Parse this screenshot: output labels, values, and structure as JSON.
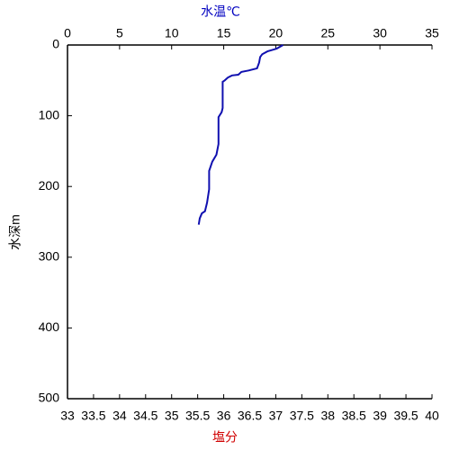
{
  "chart_data": {
    "type": "line",
    "x_label": "水温℃",
    "y_label": "水深m",
    "x2_label": "塩分",
    "x_label_color": "#0000c0",
    "x2_label_color": "#d00000",
    "xlim": [
      0,
      35
    ],
    "xticks": [
      0,
      5,
      10,
      15,
      20,
      25,
      30,
      35
    ],
    "ylim": [
      0,
      500
    ],
    "yticks": [
      0,
      100,
      200,
      300,
      400,
      500
    ],
    "y_inverted": true,
    "x2lim": [
      33,
      40
    ],
    "x2ticks": [
      33,
      33.5,
      34,
      34.5,
      35,
      35.5,
      36,
      36.5,
      37,
      37.5,
      38,
      38.5,
      39,
      39.5,
      40
    ],
    "series": [
      {
        "color": "#1010b0",
        "x": [
          20.7,
          20.1,
          19.9,
          19.2,
          18.7,
          18.5,
          18.4,
          18.2,
          17.4,
          16.7,
          16.4,
          15.8,
          15.4,
          15.1,
          14.9,
          14.9,
          14.8,
          14.5,
          14.5,
          14.3,
          13.9,
          13.6,
          13.6,
          13.4,
          13.2,
          12.9,
          12.7,
          12.6
        ],
        "y": [
          0,
          5,
          6,
          9,
          13,
          17,
          25,
          33,
          36,
          38,
          42,
          43,
          46,
          50,
          52,
          89,
          95,
          102,
          140,
          155,
          165,
          178,
          204,
          223,
          235,
          238,
          245,
          254
        ]
      }
    ]
  }
}
